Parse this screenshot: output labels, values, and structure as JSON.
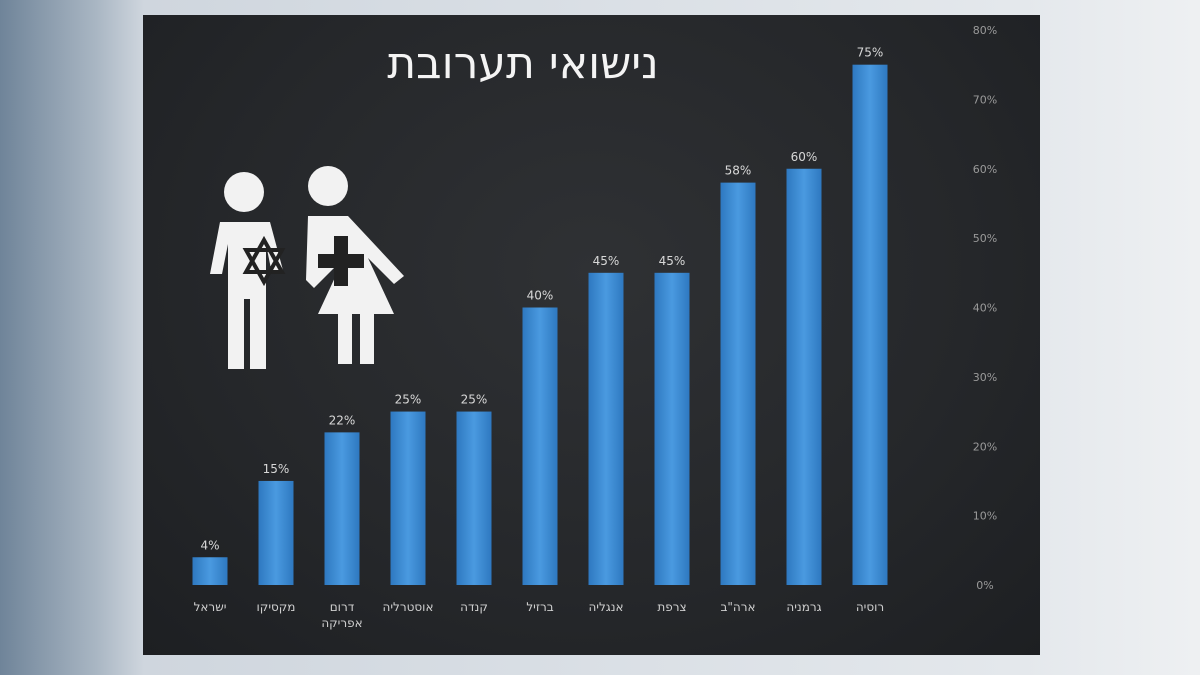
{
  "chart_data": {
    "type": "bar",
    "title": "נישואי תערובת",
    "categories": [
      "ישראל",
      "מקסיקו",
      "דרום אפריקה",
      "אוסטרליה",
      "קנדה",
      "ברזיל",
      "אנגליה",
      "צרפת",
      "ארה\"ב",
      "גרמניה",
      "רוסיה"
    ],
    "values": [
      4,
      15,
      22,
      25,
      25,
      40,
      45,
      45,
      58,
      60,
      75
    ],
    "data_labels": [
      "4%",
      "15%",
      "22%",
      "25%",
      "25%",
      "40%",
      "45%",
      "45%",
      "58%",
      "60%",
      "75%"
    ],
    "y_ticks": [
      "0%",
      "10%",
      "20%",
      "30%",
      "40%",
      "50%",
      "60%",
      "70%",
      "80%"
    ],
    "ylim": [
      0,
      80
    ],
    "y_axis_side": "right",
    "grid": false,
    "bar_color": "#3d8fd6",
    "background_color": "#26282b",
    "illustration": "male and female pictogram with star of david and cross"
  }
}
